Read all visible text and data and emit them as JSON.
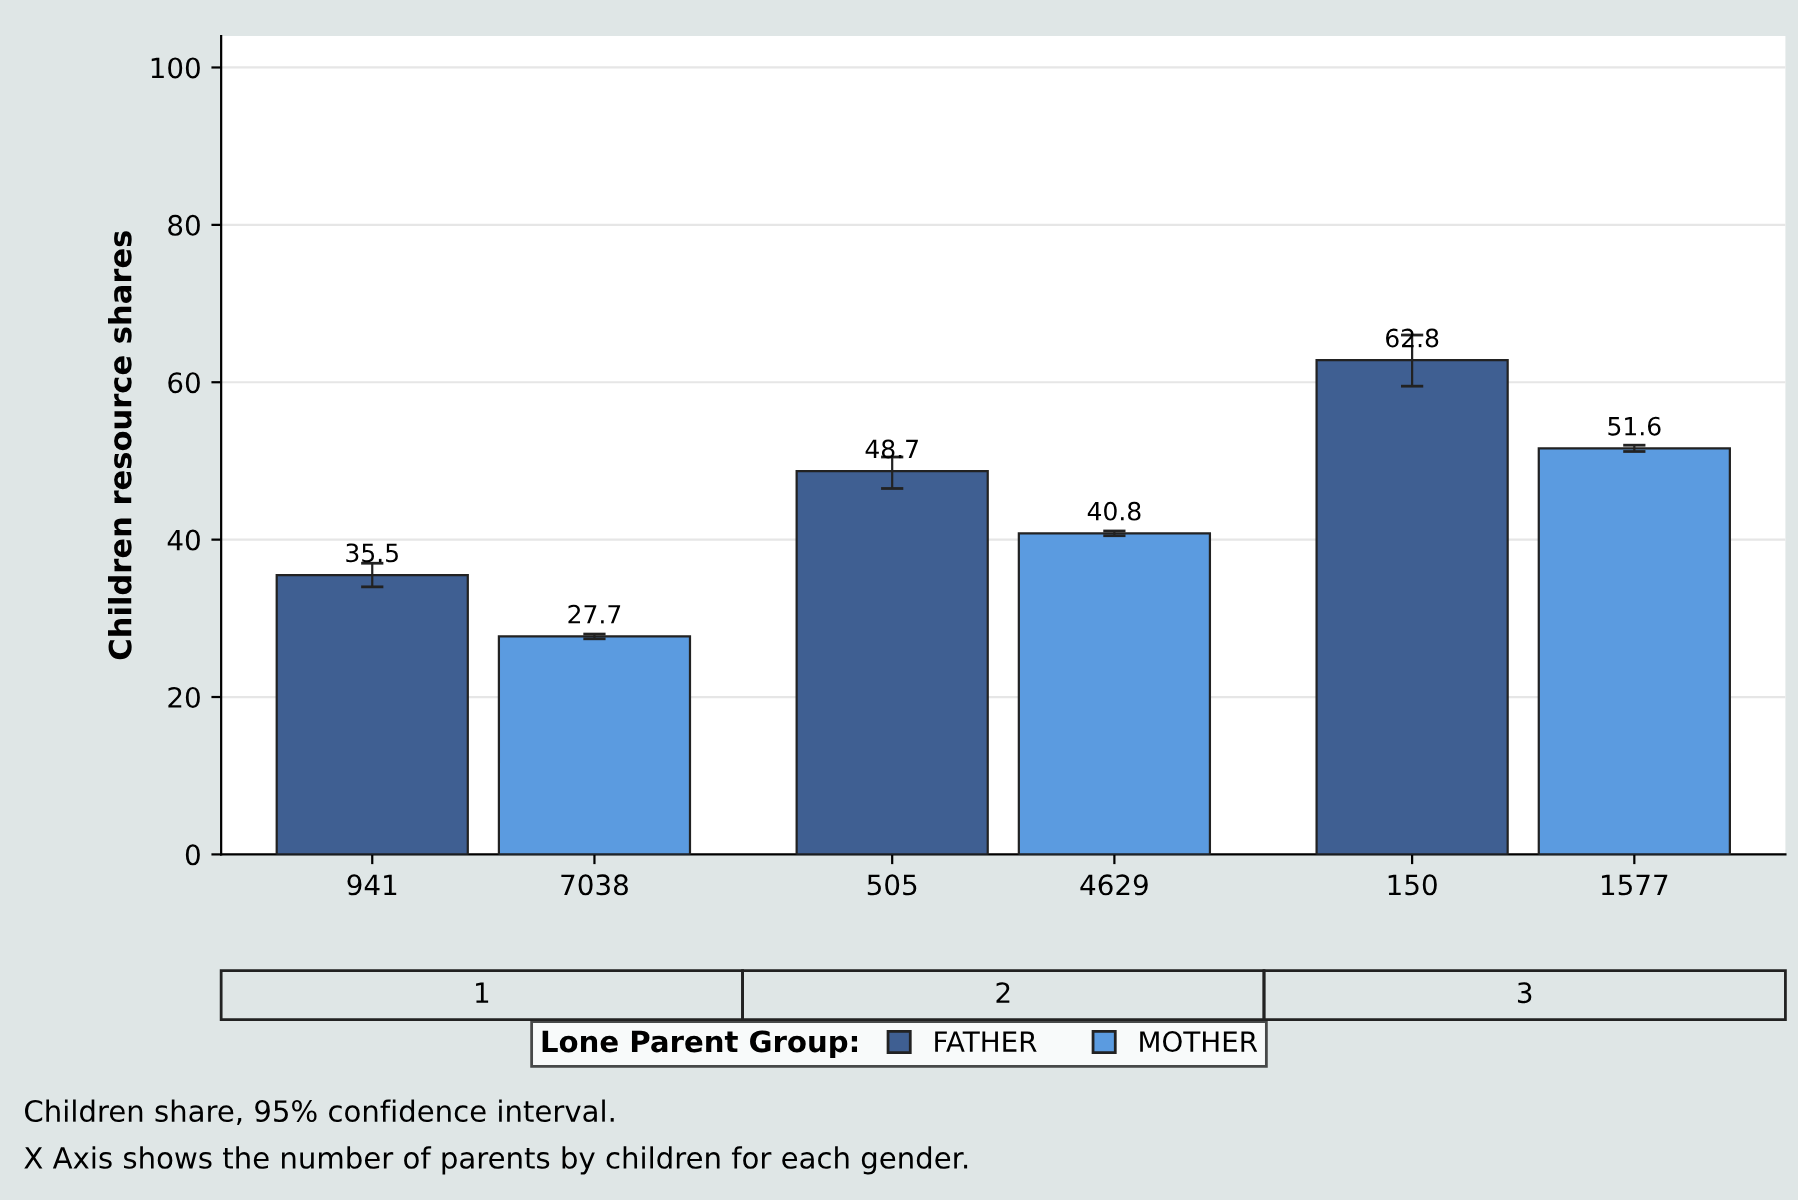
{
  "chart_data": {
    "type": "bar",
    "ylabel": "Children resource shares",
    "legend_title": "Lone Parent Group:",
    "categories": [
      "941",
      "7038",
      "505",
      "4629",
      "150",
      "1577"
    ],
    "series": [
      {
        "name": "FATHER",
        "color": "#3f5f92",
        "values": [
          35.5,
          null,
          48.7,
          null,
          62.8,
          null
        ],
        "errors": [
          [
            34.0,
            37.0
          ],
          null,
          [
            46.5,
            50.5
          ],
          null,
          [
            59.5,
            66.0
          ],
          null
        ]
      },
      {
        "name": "MOTHER",
        "color": "#5b9be0",
        "values": [
          null,
          27.7,
          null,
          40.8,
          null,
          51.6
        ],
        "errors": [
          null,
          [
            27.4,
            28.0
          ],
          null,
          [
            40.5,
            41.1
          ],
          null,
          [
            51.2,
            52.0
          ]
        ]
      }
    ],
    "ylim": [
      0,
      104
    ],
    "yticks": [
      0,
      20,
      40,
      60,
      80,
      100
    ],
    "grid": "y",
    "legend": "bottom",
    "data_labels": true,
    "annotations": [
      "1",
      "2",
      "3",
      "Children share, 95% confidence interval.",
      "X Axis shows the number of parents by children for each gender."
    ]
  }
}
